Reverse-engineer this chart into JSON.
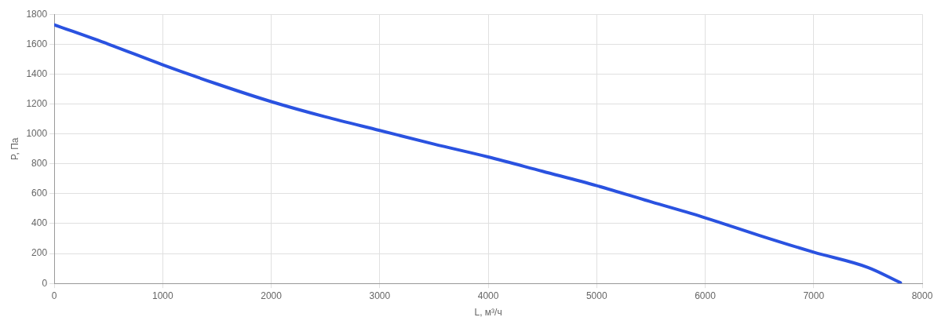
{
  "chart_data": {
    "type": "line",
    "xlabel": "L, м³/ч",
    "ylabel": "P, Па",
    "x": [
      0,
      500,
      1000,
      1500,
      2000,
      2500,
      3000,
      3500,
      4000,
      4500,
      5000,
      5500,
      6000,
      6500,
      7000,
      7500,
      7800
    ],
    "series": [
      {
        "color": "#2a52e0",
        "values": [
          1730,
          1600,
          1462,
          1334,
          1216,
          1114,
          1023,
          932,
          846,
          750,
          654,
          546,
          439,
          321,
          209,
          107,
          5
        ]
      }
    ],
    "xlim": [
      0,
      8000
    ],
    "xticks": [
      0,
      1000,
      2000,
      3000,
      4000,
      5000,
      6000,
      7000,
      8000
    ],
    "ylim": [
      0,
      1800
    ],
    "yticks": [
      0,
      200,
      400,
      600,
      800,
      1000,
      1200,
      1400,
      1600,
      1800
    ],
    "grid": true,
    "legend": false,
    "marker": "none",
    "line_style": "solid"
  }
}
